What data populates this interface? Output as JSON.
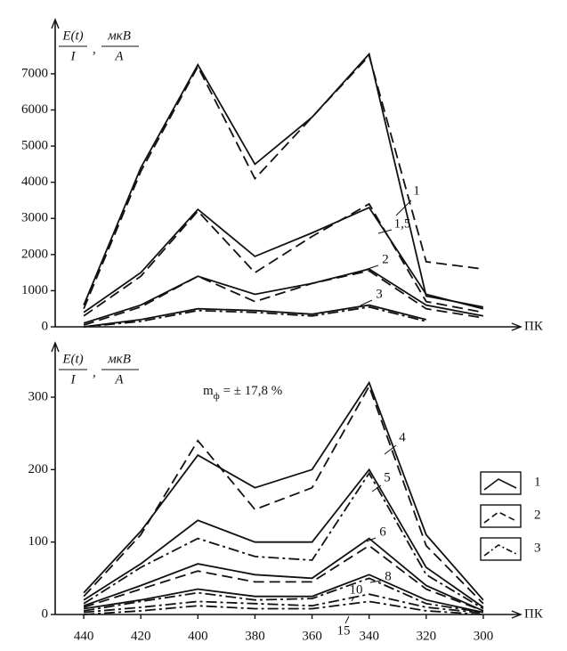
{
  "chart_data": [
    {
      "type": "line",
      "ylabel": {
        "num1": "E(t)",
        "den1": "I",
        "sep": ",",
        "num2": "мкВ",
        "den2": "A"
      },
      "xlabel": "ПК",
      "x": [
        440,
        420,
        400,
        380,
        360,
        340,
        320,
        300
      ],
      "xlim": [
        450,
        290
      ],
      "ylim": [
        0,
        8500
      ],
      "yticks": [
        0,
        1000,
        2000,
        3000,
        4000,
        5000,
        6000,
        7000
      ],
      "series": [
        {
          "name": "1",
          "dash": "solid",
          "values": [
            600,
            4400,
            7250,
            4500,
            5800,
            7550,
            850,
            550
          ]
        },
        {
          "dash": "dashed",
          "values": [
            500,
            4300,
            7200,
            4100,
            5800,
            7500,
            1800,
            1600
          ]
        },
        {
          "name": "1,5",
          "dash": "solid",
          "values": [
            400,
            1500,
            3250,
            1950,
            2600,
            3300,
            900,
            500
          ]
        },
        {
          "dash": "dashed",
          "values": [
            300,
            1400,
            3200,
            1500,
            2500,
            3400,
            700,
            400
          ]
        },
        {
          "name": "2",
          "dash": "solid",
          "values": [
            100,
            600,
            1400,
            900,
            1200,
            1600,
            600,
            300
          ]
        },
        {
          "dash": "dashed",
          "values": [
            50,
            550,
            1400,
            700,
            1200,
            1550,
            500,
            250
          ]
        },
        {
          "name": "3",
          "dash": "solid",
          "values": [
            0,
            200,
            500,
            450,
            350,
            600,
            200,
            null
          ]
        },
        {
          "dash": "dashdot",
          "values": [
            0,
            150,
            450,
            400,
            300,
            550,
            150,
            null
          ]
        }
      ]
    },
    {
      "type": "line",
      "ylabel": {
        "num1": "E(t)",
        "den1": "I",
        "sep": ",",
        "num2": "мкВ",
        "den2": "A"
      },
      "xlabel": "ПК",
      "annotation": {
        "main": "m",
        "sub": "ф",
        "rest": " = ± 17,8 %"
      },
      "x": [
        440,
        420,
        400,
        380,
        360,
        340,
        320,
        300
      ],
      "xlim": [
        450,
        290
      ],
      "xticks": [
        440,
        420,
        400,
        380,
        360,
        340,
        320,
        300
      ],
      "ylim": [
        0,
        375
      ],
      "yticks": [
        0,
        100,
        200,
        300
      ],
      "legend": [
        {
          "label": "1",
          "dash": "solid"
        },
        {
          "label": "2",
          "dash": "dashed"
        },
        {
          "label": "3",
          "dash": "dashdot"
        }
      ],
      "series": [
        {
          "name": "4",
          "dash": "solid",
          "values": [
            30,
            115,
            220,
            175,
            200,
            320,
            110,
            20
          ]
        },
        {
          "dash": "dashed",
          "values": [
            25,
            110,
            240,
            145,
            175,
            315,
            95,
            15
          ]
        },
        {
          "name": "5",
          "dash": "solid",
          "values": [
            20,
            70,
            130,
            100,
            100,
            200,
            65,
            10
          ]
        },
        {
          "dash": "dashdot",
          "values": [
            15,
            65,
            105,
            80,
            75,
            195,
            55,
            8
          ]
        },
        {
          "name": "6",
          "dash": "solid",
          "values": [
            12,
            40,
            70,
            55,
            50,
            105,
            40,
            5
          ]
        },
        {
          "dash": "dashed",
          "values": [
            10,
            35,
            60,
            45,
            45,
            95,
            35,
            5
          ]
        },
        {
          "name": "8",
          "dash": "solid",
          "values": [
            8,
            20,
            35,
            25,
            25,
            55,
            20,
            3
          ]
        },
        {
          "dash": "dashdot",
          "values": [
            5,
            18,
            30,
            20,
            22,
            50,
            15,
            3
          ]
        },
        {
          "name": "10",
          "dash": "dashdot",
          "values": [
            3,
            10,
            18,
            15,
            12,
            28,
            10,
            2
          ]
        },
        {
          "name": "15",
          "dash": "dashdot",
          "values": [
            0,
            5,
            12,
            8,
            8,
            18,
            5,
            0
          ]
        }
      ]
    }
  ]
}
